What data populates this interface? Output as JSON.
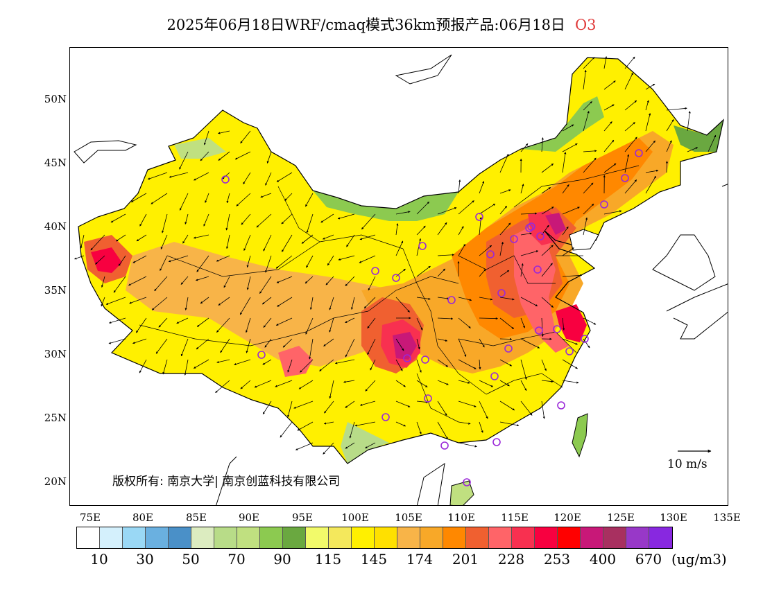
{
  "title": {
    "main": "2025年06月18日WRF/cmaq模式36km预报产品:06月18日",
    "pollutant": "O3"
  },
  "axes": {
    "lat_labels": [
      "50N",
      "45N",
      "40N",
      "35N",
      "30N",
      "25N",
      "20N"
    ],
    "lon_labels": [
      "75E",
      "80E",
      "85E",
      "90E",
      "95E",
      "100E",
      "105E",
      "110E",
      "115E",
      "120E",
      "125E",
      "130E",
      "135E"
    ]
  },
  "copyright": "版权所有: 南京大学| 南京创蓝科技有限公司",
  "wind_reference": "10 m/s",
  "colorbar": {
    "colors": [
      "#ffffff",
      "#d4f0fc",
      "#9ad8f5",
      "#6ab0e0",
      "#4a90c8",
      "#dcecc0",
      "#b8dc88",
      "#c0e080",
      "#8cca50",
      "#6aa840",
      "#f2fa6a",
      "#f4e85c",
      "#fff000",
      "#ffe000",
      "#f8b448",
      "#f8a828",
      "#ff8800",
      "#f06030",
      "#ff6468",
      "#f83050",
      "#f80040",
      "#ff0000",
      "#c81878",
      "#a83060",
      "#9838c8",
      "#8828e0"
    ],
    "labels": [
      "10",
      "30",
      "50",
      "70",
      "90",
      "115",
      "145",
      "174",
      "201",
      "228",
      "253",
      "400",
      "670"
    ],
    "unit": "(ug/m3)"
  },
  "map_colors": {
    "coast": "#000000",
    "border": "#000000",
    "station": "#9a28d8"
  }
}
